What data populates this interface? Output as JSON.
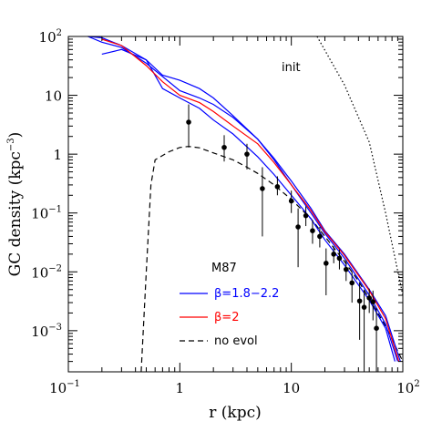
{
  "chart_data": {
    "type": "line",
    "xscale": "log",
    "yscale": "log",
    "xlim": [
      0.1,
      100
    ],
    "ylim": [
      0.0002,
      100
    ],
    "x_ticks": [
      {
        "base": "10",
        "exp": "−1"
      },
      {
        "base": "1",
        "exp": ""
      },
      {
        "base": "10",
        "exp": ""
      },
      {
        "base": "10",
        "exp": "2"
      }
    ],
    "y_ticks": [
      {
        "base": "10",
        "exp": "−3"
      },
      {
        "base": "10",
        "exp": "−2"
      },
      {
        "base": "10",
        "exp": "−1"
      },
      {
        "base": "1",
        "exp": ""
      },
      {
        "base": "10",
        "exp": ""
      },
      {
        "base": "10",
        "exp": "2"
      }
    ],
    "xlabel": "r (kpc)",
    "ylabel": {
      "text": "GC density (kpc",
      "exp": "−3",
      "close": ")"
    },
    "legend": {
      "title": "M87",
      "entries": [
        {
          "label": "β=1.8−2.2",
          "color": "#0000ff",
          "dash": "solid"
        },
        {
          "label": "β=2",
          "color": "#ff0000",
          "dash": "solid"
        },
        {
          "label": "no evol",
          "color": "#000000",
          "dash": "dashed"
        }
      ]
    },
    "annotations": [
      {
        "text": "init"
      }
    ],
    "series": [
      {
        "id": "init",
        "color": "#000000",
        "dash": "dotted",
        "x": [
          17,
          30,
          50,
          70,
          100
        ],
        "y": [
          100,
          15,
          1.6,
          0.1,
          0.004
        ]
      },
      {
        "id": "no-evol",
        "color": "#000000",
        "dash": "dashed",
        "x": [
          0.45,
          0.5,
          0.55,
          0.6,
          0.8,
          1.0,
          1.2,
          1.5,
          2,
          3,
          4,
          5,
          7,
          10,
          15,
          20,
          30,
          40,
          50,
          70,
          100
        ],
        "y": [
          0.0002,
          0.01,
          0.3,
          0.8,
          1.1,
          1.3,
          1.35,
          1.28,
          1.05,
          0.8,
          0.6,
          0.47,
          0.3,
          0.17,
          0.08,
          0.04,
          0.015,
          0.007,
          0.0035,
          0.0012,
          0.0003
        ]
      },
      {
        "id": "blue-a",
        "color": "#0000ff",
        "dash": "solid",
        "x": [
          0.15,
          0.2,
          0.3,
          0.5,
          1,
          1.5,
          2,
          3,
          5,
          7,
          10,
          15,
          20,
          30,
          50,
          70,
          90
        ],
        "y": [
          100,
          80,
          65,
          35,
          12,
          9,
          7,
          4.2,
          1.8,
          0.8,
          0.3,
          0.1,
          0.045,
          0.017,
          0.004,
          0.0013,
          0.0003
        ]
      },
      {
        "id": "blue-b",
        "color": "#0000ff",
        "dash": "solid",
        "x": [
          0.2,
          0.3,
          0.5,
          0.7,
          1,
          1.5,
          2,
          3,
          5,
          7,
          10,
          15,
          20,
          30,
          50,
          70,
          85
        ],
        "y": [
          50,
          60,
          40,
          13,
          9,
          6,
          3.8,
          2.2,
          0.9,
          0.45,
          0.2,
          0.08,
          0.035,
          0.013,
          0.0033,
          0.0011,
          0.0003
        ]
      },
      {
        "id": "blue-c",
        "color": "#0000ff",
        "dash": "solid",
        "x": [
          0.15,
          0.2,
          0.3,
          0.5,
          0.7,
          1,
          1.5,
          2,
          3,
          5,
          7,
          10,
          15,
          20,
          30,
          50,
          70,
          95
        ],
        "y": [
          100,
          95,
          70,
          40,
          22,
          18,
          13,
          9,
          4.5,
          1.8,
          0.85,
          0.35,
          0.12,
          0.05,
          0.02,
          0.005,
          0.0018,
          0.0003
        ]
      },
      {
        "id": "red",
        "color": "#ff0000",
        "dash": "solid",
        "x": [
          0.2,
          0.3,
          0.5,
          0.7,
          1,
          1.5,
          2,
          3,
          5,
          7,
          10,
          15,
          20,
          30,
          50,
          70,
          92
        ],
        "y": [
          90,
          70,
          32,
          17,
          10,
          7.5,
          5.3,
          3,
          1.5,
          0.72,
          0.3,
          0.11,
          0.048,
          0.019,
          0.0048,
          0.0016,
          0.0003
        ]
      }
    ],
    "data_points": [
      {
        "x": 1.2,
        "y": 3.5,
        "lo": 1.3,
        "hi": 7
      },
      {
        "x": 2.5,
        "y": 1.3,
        "lo": 0.75,
        "hi": 2.1
      },
      {
        "x": 4.0,
        "y": 1.0,
        "lo": 0.55,
        "hi": 1.5
      },
      {
        "x": 5.5,
        "y": 0.26,
        "lo": 0.04,
        "hi": 0.6
      },
      {
        "x": 7.5,
        "y": 0.28,
        "lo": 0.2,
        "hi": 0.42
      },
      {
        "x": 10.0,
        "y": 0.16,
        "lo": 0.1,
        "hi": 0.24
      },
      {
        "x": 11.5,
        "y": 0.058,
        "lo": 0.012,
        "hi": 0.12
      },
      {
        "x": 13.5,
        "y": 0.09,
        "lo": 0.06,
        "hi": 0.13
      },
      {
        "x": 15.5,
        "y": 0.05,
        "lo": 0.03,
        "hi": 0.075
      },
      {
        "x": 18.0,
        "y": 0.04,
        "lo": 0.026,
        "hi": 0.058
      },
      {
        "x": 20.5,
        "y": 0.014,
        "lo": 0.004,
        "hi": 0.025
      },
      {
        "x": 24.0,
        "y": 0.02,
        "lo": 0.014,
        "hi": 0.027
      },
      {
        "x": 27.0,
        "y": 0.017,
        "lo": 0.011,
        "hi": 0.024
      },
      {
        "x": 31.0,
        "y": 0.011,
        "lo": 0.007,
        "hi": 0.016
      },
      {
        "x": 35.0,
        "y": 0.0065,
        "lo": 0.003,
        "hi": 0.01
      },
      {
        "x": 41.0,
        "y": 0.0032,
        "lo": 0.0007,
        "hi": 0.0065
      },
      {
        "x": 45.0,
        "y": 0.0025,
        "lo": 0.0002,
        "hi": 0.005
      },
      {
        "x": 50.0,
        "y": 0.0036,
        "lo": 0.002,
        "hi": 0.0052
      },
      {
        "x": 54.0,
        "y": 0.0031,
        "lo": 0.0015,
        "hi": 0.0048
      },
      {
        "x": 58.0,
        "y": 0.0011,
        "lo": 0.0002,
        "hi": 0.0024
      }
    ]
  }
}
